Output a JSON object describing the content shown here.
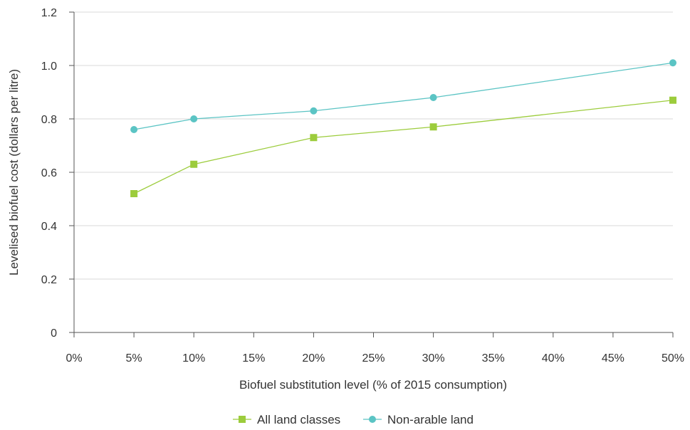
{
  "chart_data": {
    "type": "line",
    "title": "",
    "xlabel": "Biofuel substitution level (% of 2015 consumption)",
    "ylabel": "Levelised biofuel cost (dollars per litre)",
    "xlim": [
      0,
      50
    ],
    "ylim": [
      0,
      1.2
    ],
    "x_ticks": [
      0,
      5,
      10,
      15,
      20,
      25,
      30,
      35,
      40,
      45,
      50
    ],
    "x_tick_labels": [
      "0%",
      "5%",
      "10%",
      "15%",
      "20%",
      "25%",
      "30%",
      "35%",
      "40%",
      "45%",
      "50%"
    ],
    "y_ticks": [
      0,
      0.2,
      0.4,
      0.6,
      0.8,
      1.0,
      1.2
    ],
    "y_tick_labels": [
      "0",
      "0.2",
      "0.4",
      "0.6",
      "0.8",
      "1.0",
      "1.2"
    ],
    "grid": "horizontal",
    "legend_position": "bottom",
    "series": [
      {
        "name": "All land classes",
        "color": "#9ccc3c",
        "marker": "square",
        "x": [
          5,
          10,
          20,
          30,
          50
        ],
        "y": [
          0.52,
          0.63,
          0.73,
          0.77,
          0.87
        ]
      },
      {
        "name": "Non-arable land",
        "color": "#5bc4c4",
        "marker": "circle",
        "x": [
          5,
          10,
          20,
          30,
          50
        ],
        "y": [
          0.76,
          0.8,
          0.83,
          0.88,
          1.01
        ]
      }
    ]
  }
}
